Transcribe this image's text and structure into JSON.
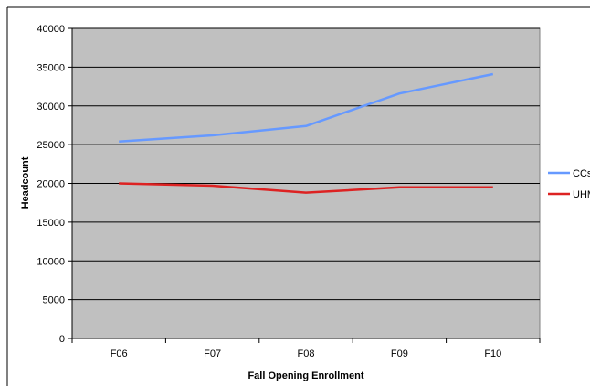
{
  "chart_data": {
    "type": "line",
    "title": "",
    "xlabel": "Fall Opening Enrollment",
    "ylabel": "Headcount",
    "categories": [
      "F06",
      "F07",
      "F08",
      "F09",
      "F10"
    ],
    "ylim": [
      0,
      40000
    ],
    "yticks": [
      0,
      5000,
      10000,
      15000,
      20000,
      25000,
      30000,
      35000,
      40000
    ],
    "grid": true,
    "legend_position": "right",
    "background": "#c0c0c0",
    "series": [
      {
        "name": "CCs",
        "color": "#6699ff",
        "values": [
          25400,
          26200,
          27400,
          31600,
          34100
        ]
      },
      {
        "name": "UHM",
        "color": "#dd2222",
        "values": [
          20000,
          19700,
          18800,
          19500,
          19500
        ]
      }
    ]
  }
}
